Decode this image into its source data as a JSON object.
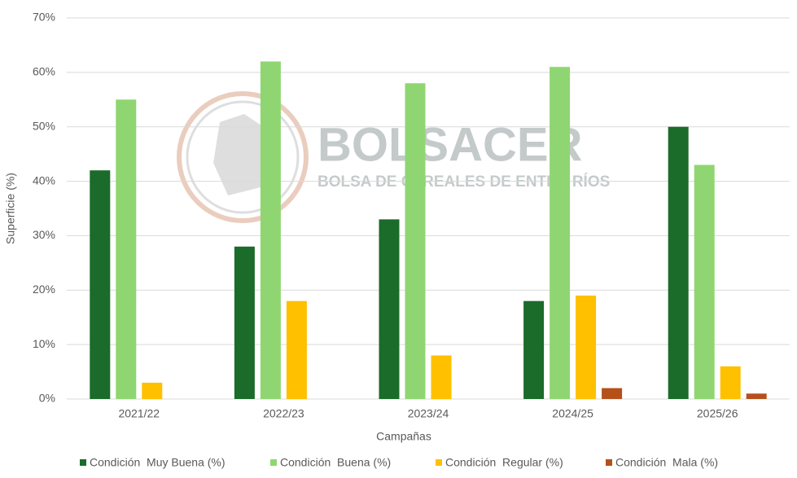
{
  "chart_data": {
    "type": "bar",
    "categories": [
      "2021/22",
      "2022/23",
      "2023/24",
      "2024/25",
      "2025/26"
    ],
    "series": [
      {
        "name": "Condición  Muy Buena (%)",
        "color": "#1b6b2a",
        "values": [
          42,
          28,
          33,
          18,
          50
        ]
      },
      {
        "name": "Condición  Buena (%)",
        "color": "#8fd672",
        "values": [
          55,
          62,
          58,
          61,
          43
        ]
      },
      {
        "name": "Condición  Regular (%)",
        "color": "#ffc000",
        "values": [
          3,
          18,
          8,
          19,
          6
        ]
      },
      {
        "name": "Condición  Mala (%)",
        "color": "#b5501b",
        "values": [
          null,
          null,
          null,
          2,
          1
        ]
      }
    ],
    "ylim": [
      0,
      70
    ],
    "yticks": [
      {
        "value": 0,
        "label": "0%"
      },
      {
        "value": 10,
        "label": "10%"
      },
      {
        "value": 20,
        "label": "20%"
      },
      {
        "value": 30,
        "label": "30%"
      },
      {
        "value": 40,
        "label": "40%"
      },
      {
        "value": 50,
        "label": "50%"
      },
      {
        "value": 60,
        "label": "60%"
      },
      {
        "value": 70,
        "label": "70%"
      }
    ],
    "y_label": "Superficie (%)",
    "x_label": "Campañas",
    "grid": true,
    "legend": "bottom",
    "watermark": {
      "title": "BOLSACER",
      "subtitle": "BOLSA DE CEREALES DE ENTRE RÍOS"
    }
  }
}
